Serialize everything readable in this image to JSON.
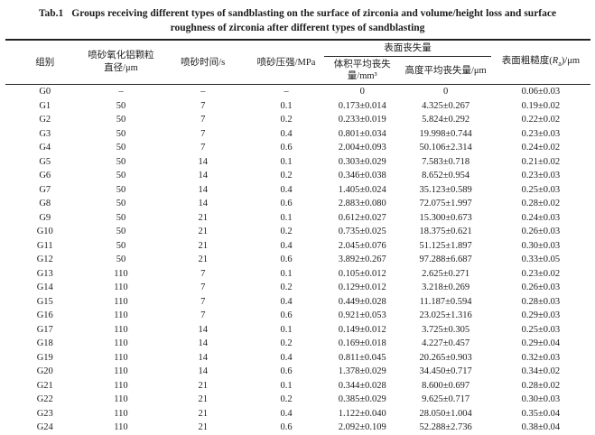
{
  "title": {
    "label": "Tab.1",
    "line1": "Groups receiving different types of sandblasting on the surface of zirconia and volume/height loss and surface",
    "line2": "roughness of zirconia after different types of sandblasting"
  },
  "table": {
    "headers": {
      "group": "组别",
      "diameter_line1": "喷砂氧化铝颗粒",
      "diameter_line2": "直径/μm",
      "time": "喷砂时间/s",
      "pressure": "喷砂压强/MPa",
      "surface_loss": "表面丧失量",
      "volume_loss": "体积平均丧失量/mm³",
      "height_loss": "高度平均丧失量/μm",
      "roughness_prefix": "表面粗糙度(",
      "roughness_symbol": "R",
      "roughness_sub": "a",
      "roughness_suffix": ")/μm"
    },
    "rows": [
      [
        "G0",
        "–",
        "–",
        "–",
        "0",
        "0",
        "0.06±0.03"
      ],
      [
        "G1",
        "50",
        "7",
        "0.1",
        "0.173±0.014",
        "4.325±0.267",
        "0.19±0.02"
      ],
      [
        "G2",
        "50",
        "7",
        "0.2",
        "0.233±0.019",
        "5.824±0.292",
        "0.22±0.02"
      ],
      [
        "G3",
        "50",
        "7",
        "0.4",
        "0.801±0.034",
        "19.998±0.744",
        "0.23±0.03"
      ],
      [
        "G4",
        "50",
        "7",
        "0.6",
        "2.004±0.093",
        "50.106±2.314",
        "0.24±0.02"
      ],
      [
        "G5",
        "50",
        "14",
        "0.1",
        "0.303±0.029",
        "7.583±0.718",
        "0.21±0.02"
      ],
      [
        "G6",
        "50",
        "14",
        "0.2",
        "0.346±0.038",
        "8.652±0.954",
        "0.23±0.03"
      ],
      [
        "G7",
        "50",
        "14",
        "0.4",
        "1.405±0.024",
        "35.123±0.589",
        "0.25±0.03"
      ],
      [
        "G8",
        "50",
        "14",
        "0.6",
        "2.883±0.080",
        "72.075±1.997",
        "0.28±0.02"
      ],
      [
        "G9",
        "50",
        "21",
        "0.1",
        "0.612±0.027",
        "15.300±0.673",
        "0.24±0.03"
      ],
      [
        "G10",
        "50",
        "21",
        "0.2",
        "0.735±0.025",
        "18.375±0.621",
        "0.26±0.03"
      ],
      [
        "G11",
        "50",
        "21",
        "0.4",
        "2.045±0.076",
        "51.125±1.897",
        "0.30±0.03"
      ],
      [
        "G12",
        "50",
        "21",
        "0.6",
        "3.892±0.267",
        "97.288±6.687",
        "0.33±0.05"
      ],
      [
        "G13",
        "110",
        "7",
        "0.1",
        "0.105±0.012",
        "2.625±0.271",
        "0.23±0.02"
      ],
      [
        "G14",
        "110",
        "7",
        "0.2",
        "0.129±0.012",
        "3.218±0.269",
        "0.26±0.03"
      ],
      [
        "G15",
        "110",
        "7",
        "0.4",
        "0.449±0.028",
        "11.187±0.594",
        "0.28±0.03"
      ],
      [
        "G16",
        "110",
        "7",
        "0.6",
        "0.921±0.053",
        "23.025±1.316",
        "0.29±0.03"
      ],
      [
        "G17",
        "110",
        "14",
        "0.1",
        "0.149±0.012",
        "3.725±0.305",
        "0.25±0.03"
      ],
      [
        "G18",
        "110",
        "14",
        "0.2",
        "0.169±0.018",
        "4.227±0.457",
        "0.29±0.04"
      ],
      [
        "G19",
        "110",
        "14",
        "0.4",
        "0.811±0.045",
        "20.265±0.903",
        "0.32±0.03"
      ],
      [
        "G20",
        "110",
        "14",
        "0.6",
        "1.378±0.029",
        "34.450±0.717",
        "0.34±0.02"
      ],
      [
        "G21",
        "110",
        "21",
        "0.1",
        "0.344±0.028",
        "8.600±0.697",
        "0.28±0.02"
      ],
      [
        "G22",
        "110",
        "21",
        "0.2",
        "0.385±0.029",
        "9.625±0.717",
        "0.30±0.03"
      ],
      [
        "G23",
        "110",
        "21",
        "0.4",
        "1.122±0.040",
        "28.050±1.004",
        "0.35±0.04"
      ],
      [
        "G24",
        "110",
        "21",
        "0.6",
        "2.092±0.109",
        "52.288±2.736",
        "0.38±0.04"
      ]
    ]
  }
}
